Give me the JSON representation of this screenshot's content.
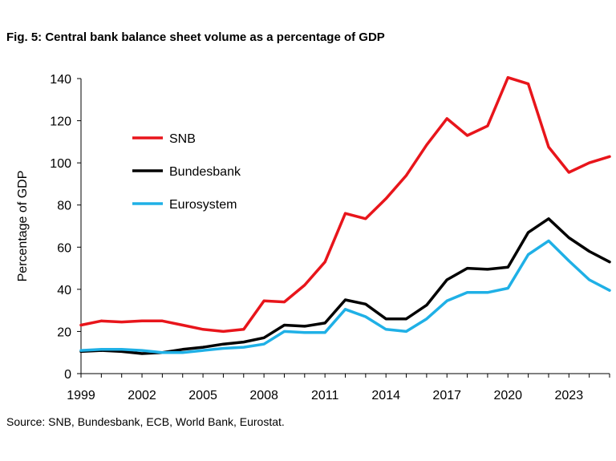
{
  "figure": {
    "title": "Fig. 5: Central bank balance sheet volume as a percentage of GDP",
    "source": "Source: SNB, Bundesbank, ECB, World Bank, Eurostat."
  },
  "chart_data": {
    "type": "line",
    "title": "Fig. 5: Central bank balance sheet volume as a percentage of GDP",
    "xlabel": "",
    "ylabel": "Percentage of GDP",
    "xlim": [
      1999,
      2025
    ],
    "ylim": [
      0,
      140
    ],
    "x_ticks": [
      1999,
      2002,
      2005,
      2008,
      2011,
      2014,
      2017,
      2020,
      2023
    ],
    "y_ticks": [
      0,
      20,
      40,
      60,
      80,
      100,
      120,
      140
    ],
    "grid": false,
    "legend_position": "upper-left",
    "x": [
      1999,
      2000,
      2001,
      2002,
      2003,
      2004,
      2005,
      2006,
      2007,
      2008,
      2009,
      2010,
      2011,
      2012,
      2013,
      2014,
      2015,
      2016,
      2017,
      2018,
      2019,
      2020,
      2021,
      2022,
      2023,
      2024,
      2025
    ],
    "series": [
      {
        "name": "SNB",
        "color": "#e8151b",
        "values": [
          23,
          25,
          24.5,
          25,
          25,
          23,
          21,
          20,
          21,
          34.5,
          34,
          42,
          53,
          76,
          73.5,
          83,
          94,
          108.5,
          121,
          113,
          117.5,
          140.5,
          137.5,
          107.5,
          95.5,
          100,
          103
        ]
      },
      {
        "name": "Bundesbank",
        "color": "#000000",
        "values": [
          10.5,
          11,
          10.5,
          9.5,
          10,
          11.5,
          12.5,
          14,
          15,
          17,
          23,
          22.5,
          24,
          35,
          33,
          26,
          26,
          32.5,
          44.5,
          50,
          49.5,
          50.5,
          67,
          73.5,
          64.5,
          58,
          53
        ]
      },
      {
        "name": "Eurosystem",
        "color": "#1fb0e6",
        "values": [
          11,
          11.5,
          11.5,
          11,
          10,
          10,
          11,
          12,
          12.5,
          14,
          20,
          19.5,
          19.5,
          30.5,
          27,
          21,
          20,
          26,
          34.5,
          38.5,
          38.5,
          40.5,
          56.5,
          63,
          53.5,
          44.5,
          39.5
        ]
      }
    ]
  }
}
